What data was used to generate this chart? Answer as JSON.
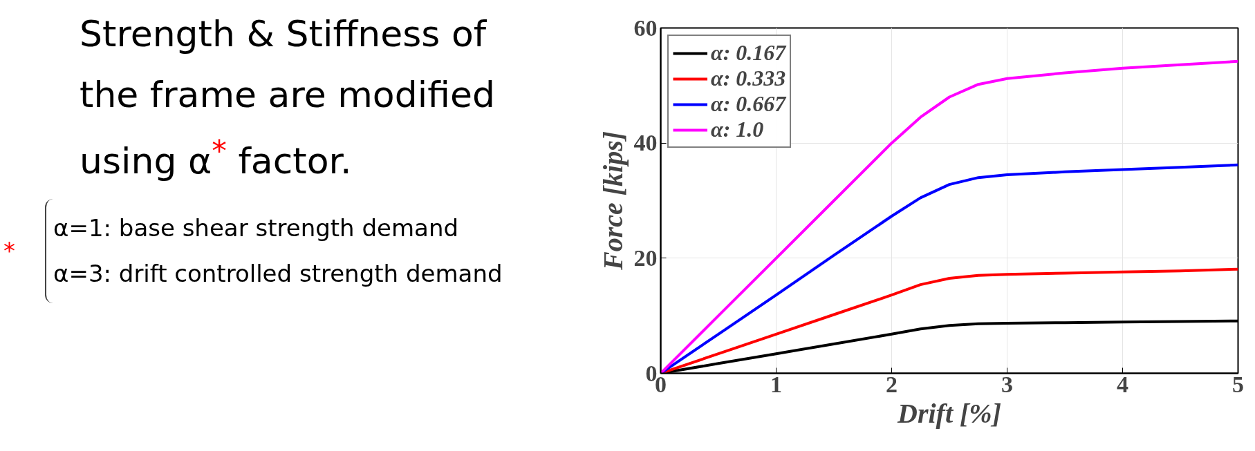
{
  "chart_data": {
    "type": "line",
    "xlabel": "Drift [%]",
    "ylabel": "Force [kips]",
    "annotations": [
      "Strength & Stiffness of the frame are modified using α$^{*}$ factor.",
      "α=1: base shear strength demand",
      "α=3: drift controlled strength demand",
      "*"
    ],
    "x": [
      0,
      0.5,
      1,
      1.5,
      2,
      2.25,
      2.5,
      2.75,
      3,
      3.5,
      4,
      4.5,
      5
    ],
    "series": [
      {
        "name": "α: 0.167",
        "color": "#000000",
        "values": [
          0,
          1.7,
          3.4,
          5.1,
          6.8,
          7.7,
          8.3,
          8.6,
          8.7,
          8.8,
          8.9,
          9.0,
          9.1
        ]
      },
      {
        "name": "α: 0.333",
        "color": "#ff0000",
        "values": [
          0,
          3.4,
          6.8,
          10.2,
          13.6,
          15.4,
          16.5,
          17,
          17.2,
          17.4,
          17.6,
          17.8,
          18.1
        ]
      },
      {
        "name": "α: 0.667",
        "color": "#0000ff",
        "values": [
          0,
          6.8,
          13.6,
          20.5,
          27.3,
          30.5,
          32.8,
          34,
          34.5,
          35,
          35.4,
          35.8,
          36.2
        ]
      },
      {
        "name": "α: 1.0",
        "color": "#ff00ff",
        "values": [
          0,
          10,
          20,
          30,
          40,
          44.5,
          48,
          50.2,
          51.2,
          52.2,
          53,
          53.6,
          54.2
        ]
      }
    ],
    "xlim": [
      0,
      5
    ],
    "ylim": [
      0,
      60
    ],
    "xticks": [
      0,
      1,
      2,
      3,
      4,
      5
    ],
    "yticks": [
      0,
      20,
      40,
      60
    ],
    "grid": true,
    "legend": "top left",
    "line_style": "solid",
    "marker": "none"
  }
}
